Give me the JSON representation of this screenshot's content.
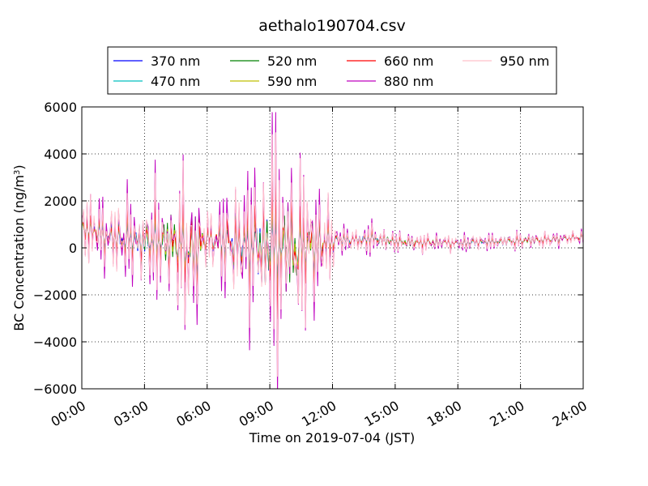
{
  "chart_data": {
    "type": "line",
    "title": "aethalo190704.csv",
    "xlabel": "Time on 2019-07-04 (JST)",
    "ylabel_main": "BC Concentration (ng/m",
    "ylabel_sup": "3",
    "ylabel_end": ")",
    "xlim_hours": [
      0,
      24
    ],
    "ylim": [
      -6000,
      6000
    ],
    "x_ticks": [
      "00:00",
      "03:00",
      "06:00",
      "09:00",
      "12:00",
      "15:00",
      "18:00",
      "21:00",
      "24:00"
    ],
    "y_ticks": [
      "6000",
      "4000",
      "2000",
      "0",
      "−2000",
      "−4000",
      "−6000"
    ],
    "y_tick_values": [
      6000,
      4000,
      2000,
      0,
      -2000,
      -4000,
      -6000
    ],
    "grid": true,
    "legend_position": "top",
    "series": [
      {
        "name": "370 nm",
        "color": "#0000ff",
        "amplitude_scale": 0.45
      },
      {
        "name": "470 nm",
        "color": "#00bfbf",
        "amplitude_scale": 0.4
      },
      {
        "name": "520 nm",
        "color": "#008000",
        "amplitude_scale": 0.55
      },
      {
        "name": "590 nm",
        "color": "#bfbf00",
        "amplitude_scale": 0.5
      },
      {
        "name": "660 nm",
        "color": "#ff0000",
        "amplitude_scale": 0.6
      },
      {
        "name": "880 nm",
        "color": "#bf00bf",
        "amplitude_scale": 1.15
      },
      {
        "name": "950 nm",
        "color": "#ffc0cb",
        "amplitude_scale": 1.0
      }
    ],
    "envelope": [
      {
        "hour": 0.0,
        "mean": 800,
        "amplitude": 1400
      },
      {
        "hour": 1.5,
        "mean": 400,
        "amplitude": 1600
      },
      {
        "hour": 3.0,
        "mean": 300,
        "amplitude": 1900
      },
      {
        "hour": 4.5,
        "mean": 200,
        "amplitude": 2800
      },
      {
        "hour": 5.5,
        "mean": 0,
        "amplitude": 3500
      },
      {
        "hour": 6.0,
        "mean": 400,
        "amplitude": 1200
      },
      {
        "hour": 7.0,
        "mean": 200,
        "amplitude": 2400
      },
      {
        "hour": 8.0,
        "mean": 0,
        "amplitude": 2900
      },
      {
        "hour": 9.0,
        "mean": 100,
        "amplitude": 4900
      },
      {
        "hour": 10.0,
        "mean": 0,
        "amplitude": 3900
      },
      {
        "hour": 11.0,
        "mean": 0,
        "amplitude": 3000
      },
      {
        "hour": 11.9,
        "mean": 400,
        "amplitude": 1800
      },
      {
        "hour": 12.2,
        "mean": 300,
        "amplitude": 600
      },
      {
        "hour": 14.0,
        "mean": 400,
        "amplitude": 650
      },
      {
        "hour": 15.0,
        "mean": 250,
        "amplitude": 450
      },
      {
        "hour": 18.0,
        "mean": 200,
        "amplitude": 380
      },
      {
        "hour": 21.0,
        "mean": 300,
        "amplitude": 330
      },
      {
        "hour": 24.0,
        "mean": 450,
        "amplitude": 330
      }
    ]
  }
}
